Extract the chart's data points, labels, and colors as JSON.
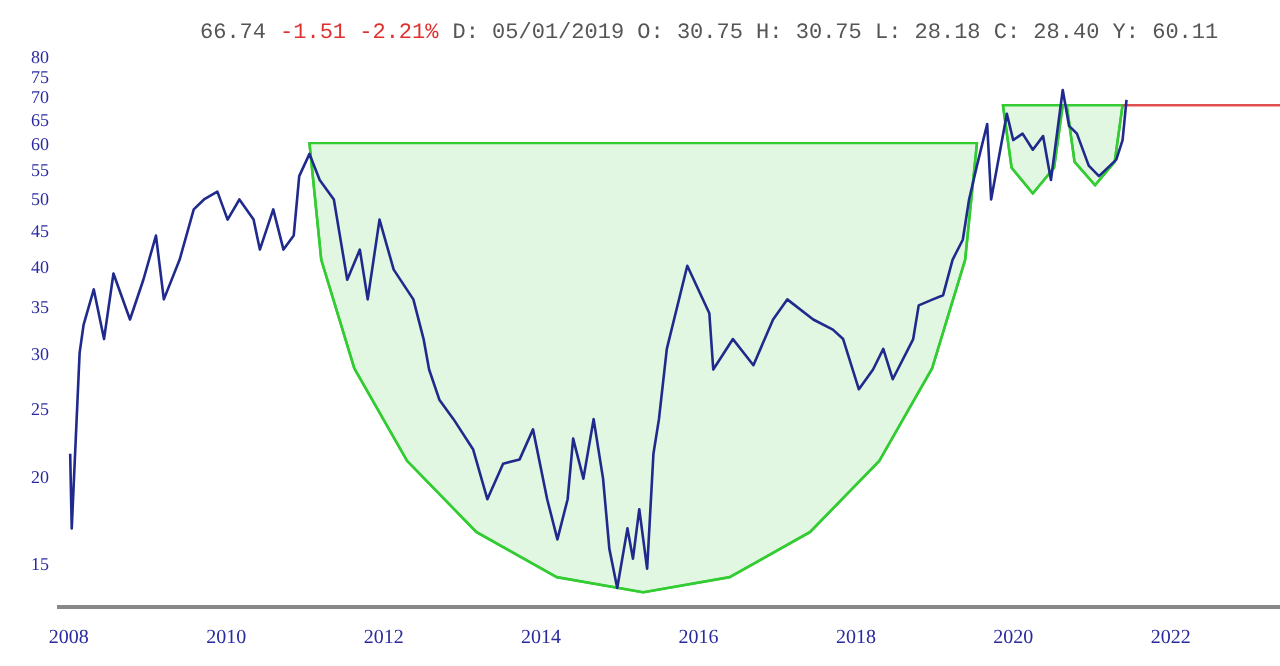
{
  "chart_data": {
    "type": "line",
    "log": "y",
    "annotations": [
      "66.74",
      "-1.51 -2.21%",
      "D: 05/01/2019 O: 30.75 H: 30.75 L: 28.18 C: 28.40 Y: 60.11"
    ],
    "xlim": [
      2007.85,
      2023.4
    ],
    "xticks": [
      2008,
      2010,
      2012,
      2014,
      2016,
      2018,
      2020,
      2022
    ],
    "ylim": [
      13,
      80
    ],
    "yticks": [
      15,
      20,
      25,
      30,
      35,
      40,
      45,
      50,
      55,
      60,
      65,
      70,
      75,
      80
    ],
    "series": [
      {
        "color": "#33cc33",
        "x": [
          2011.07,
          2011.22,
          2011.64,
          2012.31,
          2013.19,
          2014.21,
          2015.31,
          2016.41,
          2017.43,
          2018.31,
          2018.98,
          2019.4,
          2019.55
        ],
        "values": [
          60,
          40.8,
          28.5,
          21.0,
          16.6,
          14.3,
          13.6,
          14.3,
          16.6,
          21.0,
          28.5,
          40.8,
          60
        ],
        "lower": [
          60,
          40.8,
          28.5,
          21.0,
          16.6,
          14.3,
          13.6,
          14.3,
          16.6,
          21.0,
          28.5,
          40.8,
          60
        ],
        "upper": [
          60,
          60,
          60,
          60,
          60,
          60,
          60,
          60,
          60,
          60,
          60,
          60,
          60
        ]
      },
      {
        "color": "#33cc33",
        "x": [
          2019.88,
          2019.99,
          2020.26,
          2020.53,
          2020.64
        ],
        "values": [
          68,
          55.3,
          50.8,
          55.3,
          68
        ],
        "lower": [
          68,
          55.3,
          50.8,
          55.3,
          68
        ],
        "upper": [
          68,
          68,
          68,
          68,
          68
        ]
      },
      {
        "color": "#33cc33",
        "x": [
          2020.69,
          2020.79,
          2021.05,
          2021.3,
          2021.4
        ],
        "values": [
          68,
          56.4,
          52.2,
          56.4,
          68
        ],
        "lower": [
          68,
          56.4,
          52.2,
          56.4,
          68
        ],
        "upper": [
          68,
          68,
          68,
          68,
          68
        ]
      },
      {
        "color": "#e05050",
        "x": [
          2021.4,
          2023.4
        ],
        "values": [
          68,
          68
        ]
      },
      {
        "color": "#1f2a8c",
        "x": [
          2008.03,
          2008.05,
          2008.15,
          2008.2,
          2008.33,
          2008.46,
          2008.58,
          2008.79,
          2008.96,
          2009.12,
          2009.22,
          2009.42,
          2009.6,
          2009.73,
          2009.9,
          2010.03,
          2010.18,
          2010.36,
          2010.44,
          2010.61,
          2010.74,
          2010.87,
          2010.94,
          2011.07,
          2011.2,
          2011.38,
          2011.55,
          2011.71,
          2011.81,
          2011.96,
          2012.14,
          2012.39,
          2012.52,
          2012.59,
          2012.72,
          2012.9,
          2013.15,
          2013.33,
          2013.53,
          2013.74,
          2013.91,
          2014.09,
          2014.22,
          2014.35,
          2014.42,
          2014.55,
          2014.68,
          2014.8,
          2014.88,
          2014.98,
          2015.11,
          2015.18,
          2015.26,
          2015.36,
          2015.44,
          2015.51,
          2015.61,
          2015.87,
          2016.15,
          2016.2,
          2016.45,
          2016.71,
          2016.96,
          2017.14,
          2017.47,
          2017.72,
          2017.85,
          2018.05,
          2018.23,
          2018.36,
          2018.48,
          2018.74,
          2018.81,
          2018.99,
          2019.12,
          2019.24,
          2019.37,
          2019.45,
          2019.55,
          2019.68,
          2019.73,
          2019.93,
          2020.01,
          2020.13,
          2020.26,
          2020.39,
          2020.49,
          2020.59,
          2020.64,
          2020.72,
          2020.82,
          2020.97,
          2021.1,
          2021.32,
          2021.4,
          2021.45
        ],
        "values": [
          21.5,
          16.8,
          30.0,
          32.9,
          37.0,
          31.4,
          39.0,
          33.5,
          38.2,
          44.2,
          35.8,
          40.8,
          48.2,
          49.8,
          51.1,
          46.6,
          49.8,
          46.6,
          42.2,
          48.2,
          42.2,
          44.2,
          53.8,
          57.9,
          53.1,
          49.8,
          38.2,
          42.2,
          35.8,
          46.6,
          39.5,
          35.8,
          31.4,
          28.4,
          25.7,
          24.1,
          21.8,
          18.5,
          20.8,
          21.1,
          23.3,
          18.5,
          16.2,
          18.5,
          22.6,
          19.8,
          24.1,
          19.8,
          15.7,
          13.8,
          16.8,
          15.2,
          17.9,
          14.7,
          21.5,
          24.1,
          30.4,
          40.0,
          34.2,
          28.4,
          31.4,
          28.8,
          33.5,
          35.8,
          33.5,
          32.4,
          31.4,
          26.6,
          28.4,
          30.4,
          27.5,
          31.4,
          35.1,
          35.8,
          36.3,
          40.8,
          43.6,
          49.8,
          55.7,
          63.9,
          49.8,
          66.1,
          60.6,
          61.9,
          58.7,
          61.4,
          53.1,
          64.8,
          71.5,
          63.5,
          61.9,
          55.7,
          53.8,
          56.8,
          60.6,
          69.2
        ]
      }
    ]
  }
}
